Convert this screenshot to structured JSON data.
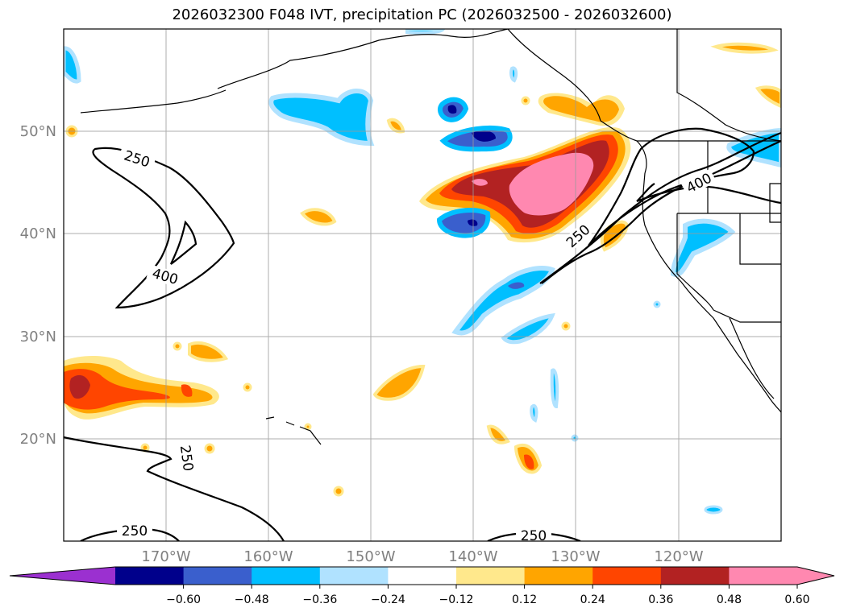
{
  "title": "2026032300 F048 IVT, precipitation PC (2026032500 - 2026032600)",
  "axes": {
    "lat_labels": [
      "50°N",
      "40°N",
      "30°N",
      "20°N"
    ],
    "lon_labels": [
      "170°W",
      "160°W",
      "150°W",
      "140°W",
      "130°W",
      "120°W"
    ],
    "lat_values": [
      50,
      40,
      30,
      20
    ],
    "lon_values": [
      -170,
      -160,
      -150,
      -140,
      -130,
      -120
    ],
    "lon_range": [
      -180,
      -110
    ],
    "lat_range": [
      10,
      60
    ]
  },
  "contours": {
    "levels": [
      "250",
      "400"
    ],
    "label_250": "250",
    "label_400": "400"
  },
  "colorbar": {
    "ticks": [
      "−0.60",
      "−0.48",
      "−0.36",
      "−0.24",
      "−0.12",
      "0.12",
      "0.24",
      "0.36",
      "0.48",
      "0.60"
    ],
    "colors": [
      "#9b30d0",
      "#00008b",
      "#3a5fcd",
      "#00bfff",
      "#b0e2ff",
      "#ffffff",
      "#ffe88c",
      "#ffa500",
      "#ff4500",
      "#b22222",
      "#ff88b0",
      "#ff88b0"
    ]
  }
}
